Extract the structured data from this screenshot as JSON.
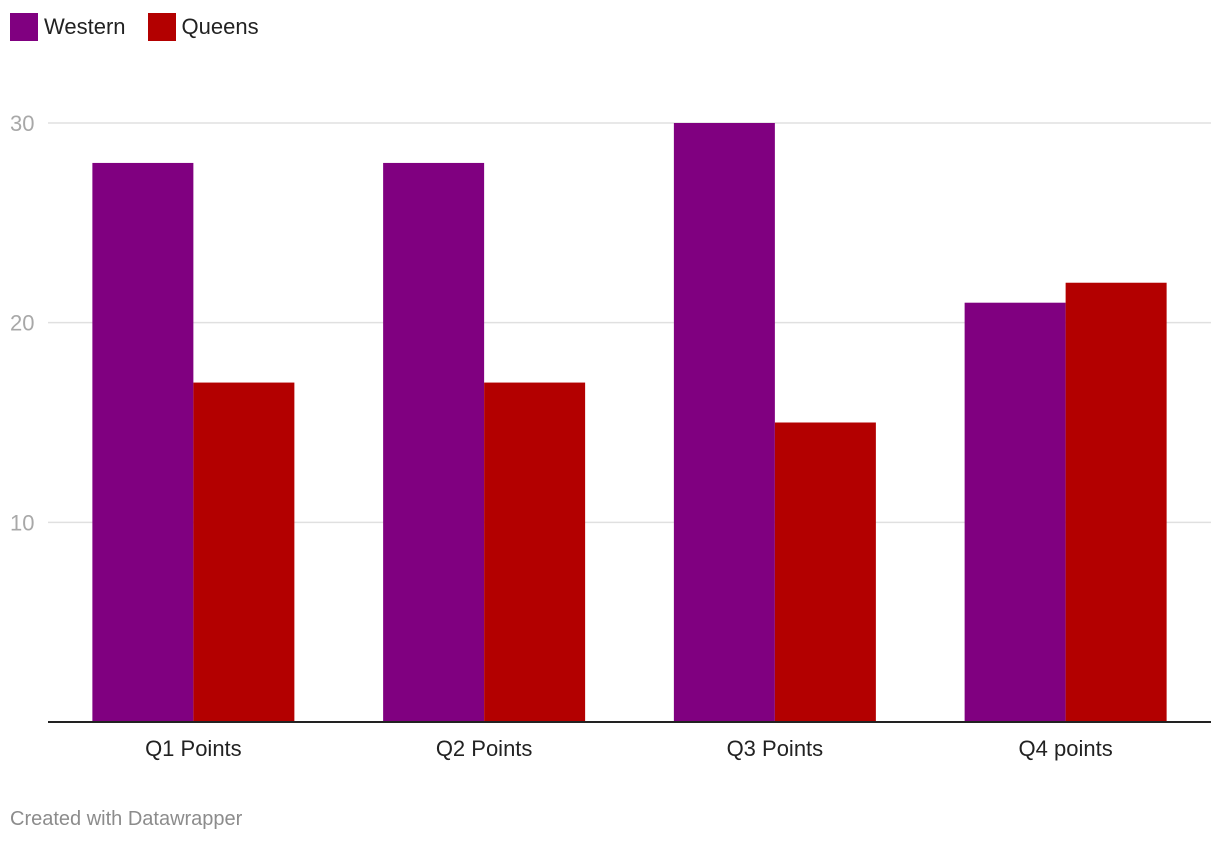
{
  "chart_data": {
    "type": "bar",
    "categories": [
      "Q1 Points",
      "Q2 Points",
      "Q3 Points",
      "Q4 points"
    ],
    "series": [
      {
        "name": "Western",
        "color": "#800080",
        "values": [
          28,
          28,
          30,
          21
        ]
      },
      {
        "name": "Queens",
        "color": "#b30000",
        "values": [
          17,
          17,
          15,
          22
        ]
      }
    ],
    "yticks": [
      10,
      20,
      30
    ],
    "ylim": [
      0,
      30
    ],
    "legend_position": "top-left",
    "grid": true,
    "title": "",
    "xlabel": "",
    "ylabel": ""
  },
  "footer": "Created with Datawrapper"
}
